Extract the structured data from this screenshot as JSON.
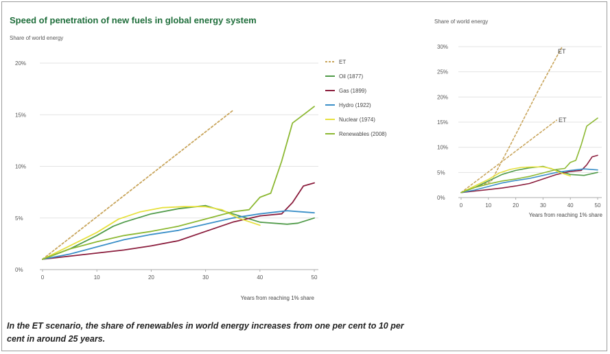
{
  "caption": "In the ET scenario, the share of renewables in world energy increases from one per cent to 10 per cent in around 25 years.",
  "chart_data": [
    {
      "type": "line",
      "title": "Speed of penetration of new fuels in global energy system",
      "subtitle": "Share of world energy",
      "xlabel": "Years from reaching 1% share",
      "ylabel": "",
      "xlim": [
        0,
        50
      ],
      "ylim": [
        0,
        20
      ],
      "x_ticks": [
        "0",
        "10",
        "20",
        "30",
        "40",
        "50"
      ],
      "y_ticks": [
        "0%",
        "5%",
        "10%",
        "15%",
        "20%"
      ],
      "grid": "horizontal",
      "legend_position": "top-right",
      "series": [
        {
          "name": "ET",
          "color": "#c8a45a",
          "dash": true,
          "x": [
            0,
            35
          ],
          "y": [
            1,
            15.4
          ]
        },
        {
          "name": "Oil (1877)",
          "color": "#4f9a48",
          "x": [
            0,
            5,
            10,
            13,
            15,
            20,
            25,
            30,
            35,
            40,
            45,
            47,
            50
          ],
          "y": [
            1,
            2,
            3.3,
            4.2,
            4.6,
            5.4,
            5.9,
            6.2,
            5.4,
            4.6,
            4.4,
            4.5,
            5
          ]
        },
        {
          "name": "Gas (1899)",
          "color": "#8a1c3c",
          "x": [
            0,
            5,
            10,
            15,
            20,
            25,
            30,
            35,
            40,
            44,
            46,
            48,
            50
          ],
          "y": [
            1,
            1.3,
            1.6,
            1.9,
            2.3,
            2.8,
            3.7,
            4.6,
            5.2,
            5.4,
            6.5,
            8.1,
            8.4
          ]
        },
        {
          "name": "Hydro (1922)",
          "color": "#3a8fc8",
          "x": [
            0,
            5,
            10,
            15,
            20,
            25,
            30,
            35,
            40,
            45,
            50
          ],
          "y": [
            1,
            1.5,
            2.2,
            2.9,
            3.4,
            3.8,
            4.4,
            5,
            5.4,
            5.7,
            5.5
          ]
        },
        {
          "name": "Nuclear (1974)",
          "color": "#e6e03c",
          "x": [
            0,
            5,
            10,
            14,
            18,
            22,
            26,
            30,
            33,
            36,
            40
          ],
          "y": [
            1,
            2.3,
            3.6,
            4.9,
            5.6,
            6,
            6.1,
            6.1,
            5.8,
            5,
            4.3
          ]
        },
        {
          "name": "Renewables (2008)",
          "color": "#8cb832",
          "x": [
            0,
            5,
            10,
            15,
            20,
            25,
            30,
            35,
            38,
            40,
            42,
            44,
            46,
            48,
            50
          ],
          "y": [
            1,
            2,
            2.7,
            3.3,
            3.7,
            4.2,
            4.9,
            5.6,
            5.8,
            7,
            7.4,
            10.5,
            14.2,
            15,
            15.8
          ]
        }
      ]
    },
    {
      "type": "line",
      "title": "",
      "subtitle": "Share of world energy",
      "xlabel": "Years from reaching 1% share",
      "xlim": [
        0,
        50
      ],
      "ylim": [
        0,
        20
      ],
      "x_ticks": [
        "0",
        "10",
        "20",
        "30",
        "40",
        "50"
      ],
      "y_ticks": [
        "0%",
        "5%",
        "10%",
        "15%",
        "20%",
        "25%",
        "30%"
      ],
      "grid": "horizontal",
      "annotations": [
        "ET",
        "ET"
      ],
      "series": [
        {
          "color": "#c8a45a",
          "dash": true,
          "x": [
            0,
            11,
            18,
            28,
            37
          ],
          "y": [
            1,
            3.2,
            10.4,
            21,
            30
          ]
        },
        {
          "color": "#c8a45a",
          "dash": true,
          "x": [
            0,
            35
          ],
          "y": [
            1,
            15.4
          ]
        },
        {
          "color": "#4f9a48",
          "x": [
            0,
            5,
            10,
            15,
            20,
            25,
            30,
            35,
            40,
            45,
            50
          ],
          "y": [
            1,
            2,
            3.3,
            4.6,
            5.4,
            5.9,
            6.2,
            5.4,
            4.6,
            4.4,
            5
          ]
        },
        {
          "color": "#8a1c3c",
          "x": [
            0,
            5,
            10,
            15,
            20,
            25,
            30,
            35,
            40,
            44,
            46,
            48,
            50
          ],
          "y": [
            1,
            1.3,
            1.6,
            1.9,
            2.3,
            2.8,
            3.7,
            4.6,
            5.2,
            5.4,
            6.5,
            8.1,
            8.4
          ]
        },
        {
          "color": "#3a8fc8",
          "x": [
            0,
            5,
            10,
            15,
            20,
            25,
            30,
            35,
            40,
            45,
            50
          ],
          "y": [
            1,
            1.5,
            2.2,
            2.9,
            3.4,
            3.8,
            4.4,
            5,
            5.4,
            5.7,
            5.5
          ]
        },
        {
          "color": "#e6e03c",
          "x": [
            0,
            5,
            10,
            14,
            18,
            22,
            26,
            30,
            33,
            36,
            40
          ],
          "y": [
            1,
            2.3,
            3.6,
            4.9,
            5.6,
            6,
            6.1,
            6.1,
            5.8,
            5,
            4.3
          ]
        },
        {
          "color": "#8cb832",
          "x": [
            0,
            5,
            10,
            15,
            20,
            25,
            30,
            35,
            38,
            40,
            42,
            44,
            46,
            48,
            50
          ],
          "y": [
            1,
            2,
            2.7,
            3.3,
            3.7,
            4.2,
            4.9,
            5.6,
            5.8,
            7,
            7.4,
            10.5,
            14.2,
            15,
            15.8
          ]
        }
      ]
    }
  ]
}
